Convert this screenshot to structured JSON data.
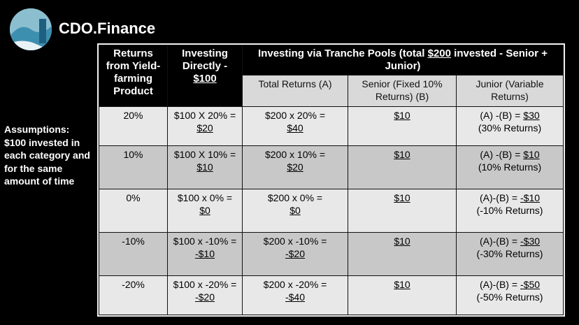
{
  "header": {
    "brand": "CDO.Finance"
  },
  "assumptions": "Assumptions: $100 invested in each category and for the same amount of time",
  "table": {
    "headers": {
      "returns": "Returns from Yield-farming Product",
      "direct": [
        "Investing Directly -",
        "$100"
      ],
      "tranche": [
        "Investing via Tranche Pools (total",
        "$200",
        "invested - Senior + Junior)"
      ]
    },
    "subheaders": [
      "Total Returns (A)",
      "Senior (Fixed 10% Returns) (B)",
      "Junior (Variable Returns)"
    ],
    "rows": [
      [
        "20%",
        [
          "$100 X 20% =",
          "$20"
        ],
        [
          "$200 x 20% =",
          "$40"
        ],
        "$10",
        [
          "(A) -(B) =",
          "$30",
          "(30% Returns)"
        ]
      ],
      [
        "10%",
        [
          "$100 X 10% =",
          "$10"
        ],
        [
          "$200 x 10% =",
          "$20"
        ],
        "$10",
        [
          "(A) -(B) =",
          "$10",
          "(10% Returns)"
        ]
      ],
      [
        "0%",
        [
          "$100 x 0% =",
          "$0"
        ],
        [
          "$200 x 0% =",
          "$0"
        ],
        "$10",
        [
          "(A)-(B) =",
          "-$10",
          "(-10% Returns)"
        ]
      ],
      [
        "-10%",
        [
          "$100 x -10% =",
          "-$10"
        ],
        [
          "$200 x -10% =",
          "-$20"
        ],
        "$10",
        [
          "(A)-(B) =",
          "-$30",
          "(-30% Returns)"
        ]
      ],
      [
        "-20%",
        [
          "$100 x -20% =",
          "-$20"
        ],
        [
          "$200 x -20% =",
          "-$40"
        ],
        "$10",
        [
          "(A)-(B) =",
          "-$50",
          "(-50% Returns)"
        ]
      ]
    ]
  }
}
